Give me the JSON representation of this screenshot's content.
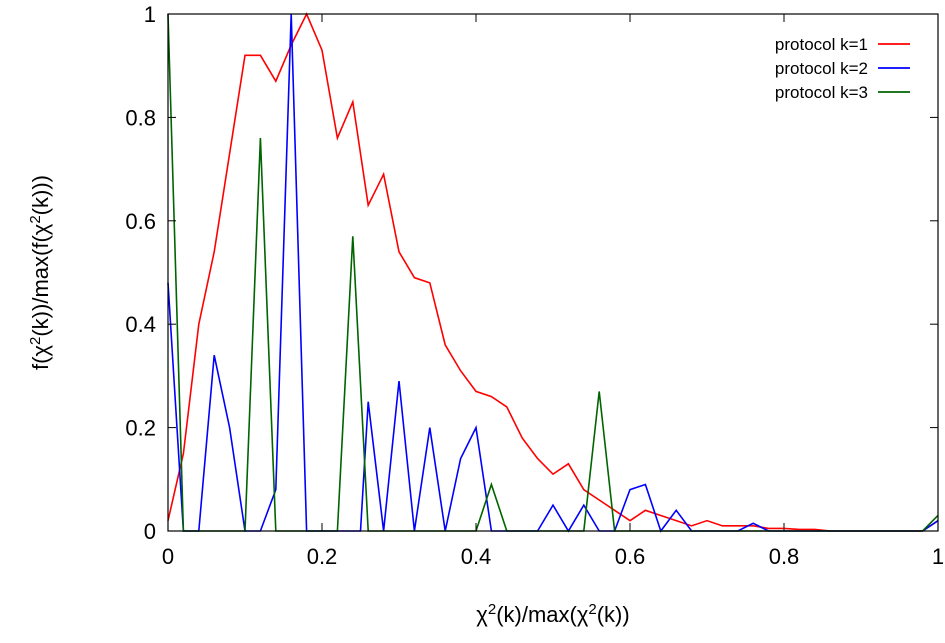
{
  "chart_data": {
    "type": "line",
    "title": "",
    "xlabel": {
      "base": "χ",
      "sup": "2",
      "rest": "(k)/max(χ",
      "sup2": "2",
      "tail": "(k))"
    },
    "ylabel": {
      "p1": "f(χ",
      "sup1": "2",
      "p2": "(k))/max(f(χ",
      "sup2": "2",
      "p3": "(k)))"
    },
    "xlim": [
      0,
      1
    ],
    "ylim": [
      0,
      1
    ],
    "xticks": [
      0,
      0.2,
      0.4,
      0.6,
      0.8,
      1
    ],
    "xtick_labels": [
      "0",
      "0.2",
      "0.4",
      "0.6",
      "0.8",
      "1"
    ],
    "yticks": [
      0,
      0.2,
      0.4,
      0.6,
      0.8,
      1
    ],
    "ytick_labels": [
      "0",
      "0.2",
      "0.4",
      "0.6",
      "0.8",
      "1"
    ],
    "grid": false,
    "legend_position": "top-right",
    "series": [
      {
        "name": "protocol k=1",
        "color": "#ff0000",
        "x": [
          0,
          0.02,
          0.04,
          0.06,
          0.08,
          0.1,
          0.12,
          0.14,
          0.16,
          0.18,
          0.2,
          0.22,
          0.24,
          0.26,
          0.28,
          0.3,
          0.32,
          0.34,
          0.36,
          0.38,
          0.4,
          0.42,
          0.44,
          0.46,
          0.48,
          0.5,
          0.52,
          0.54,
          0.56,
          0.58,
          0.6,
          0.62,
          0.64,
          0.66,
          0.68,
          0.7,
          0.72,
          0.74,
          0.76,
          0.78,
          0.8,
          0.82,
          0.84,
          0.86,
          0.88,
          0.9,
          0.92,
          0.94,
          0.96,
          0.98,
          1.0
        ],
        "y": [
          0.02,
          0.15,
          0.4,
          0.54,
          0.73,
          0.92,
          0.92,
          0.87,
          0.94,
          1.0,
          0.93,
          0.76,
          0.83,
          0.63,
          0.69,
          0.54,
          0.49,
          0.48,
          0.36,
          0.31,
          0.27,
          0.26,
          0.24,
          0.18,
          0.14,
          0.11,
          0.13,
          0.08,
          0.06,
          0.04,
          0.02,
          0.04,
          0.03,
          0.02,
          0.01,
          0.02,
          0.01,
          0.01,
          0.01,
          0.005,
          0.005,
          0.003,
          0.003,
          0,
          0,
          0,
          0,
          0,
          0,
          0,
          0.02
        ]
      },
      {
        "name": "protocol k=2",
        "color": "#0000ff",
        "x": [
          0,
          0.02,
          0.04,
          0.06,
          0.08,
          0.1,
          0.12,
          0.14,
          0.16,
          0.18,
          0.2,
          0.22,
          0.24,
          0.25,
          0.26,
          0.28,
          0.3,
          0.32,
          0.34,
          0.36,
          0.38,
          0.4,
          0.42,
          0.44,
          0.46,
          0.48,
          0.5,
          0.52,
          0.54,
          0.56,
          0.58,
          0.6,
          0.62,
          0.64,
          0.66,
          0.68,
          0.7,
          0.72,
          0.74,
          0.76,
          0.78,
          0.8,
          0.98,
          1.0
        ],
        "y": [
          0.48,
          0,
          0,
          0.34,
          0.2,
          0,
          0,
          0.08,
          1.0,
          0,
          0,
          0,
          0,
          0,
          0.25,
          0,
          0.29,
          0,
          0.2,
          0,
          0.14,
          0.2,
          0,
          0,
          0,
          0,
          0.05,
          0,
          0.05,
          0,
          0,
          0.08,
          0.09,
          0,
          0.04,
          0,
          0,
          0,
          0,
          0.015,
          0,
          0,
          0,
          0.02
        ]
      },
      {
        "name": "protocol k=3",
        "color": "#006400",
        "x": [
          0,
          0.02,
          0.04,
          0.06,
          0.08,
          0.1,
          0.12,
          0.14,
          0.16,
          0.18,
          0.2,
          0.22,
          0.24,
          0.26,
          0.28,
          0.3,
          0.32,
          0.34,
          0.36,
          0.38,
          0.4,
          0.42,
          0.44,
          0.46,
          0.48,
          0.5,
          0.52,
          0.54,
          0.56,
          0.58,
          0.6,
          0.98,
          1.0
        ],
        "y": [
          1.0,
          0,
          0,
          0,
          0,
          0,
          0.76,
          0,
          0,
          0,
          0,
          0,
          0.57,
          0,
          0,
          0,
          0,
          0,
          0,
          0,
          0,
          0.09,
          0,
          0,
          0,
          0,
          0,
          0,
          0.27,
          0,
          0,
          0,
          0.03
        ]
      }
    ]
  }
}
